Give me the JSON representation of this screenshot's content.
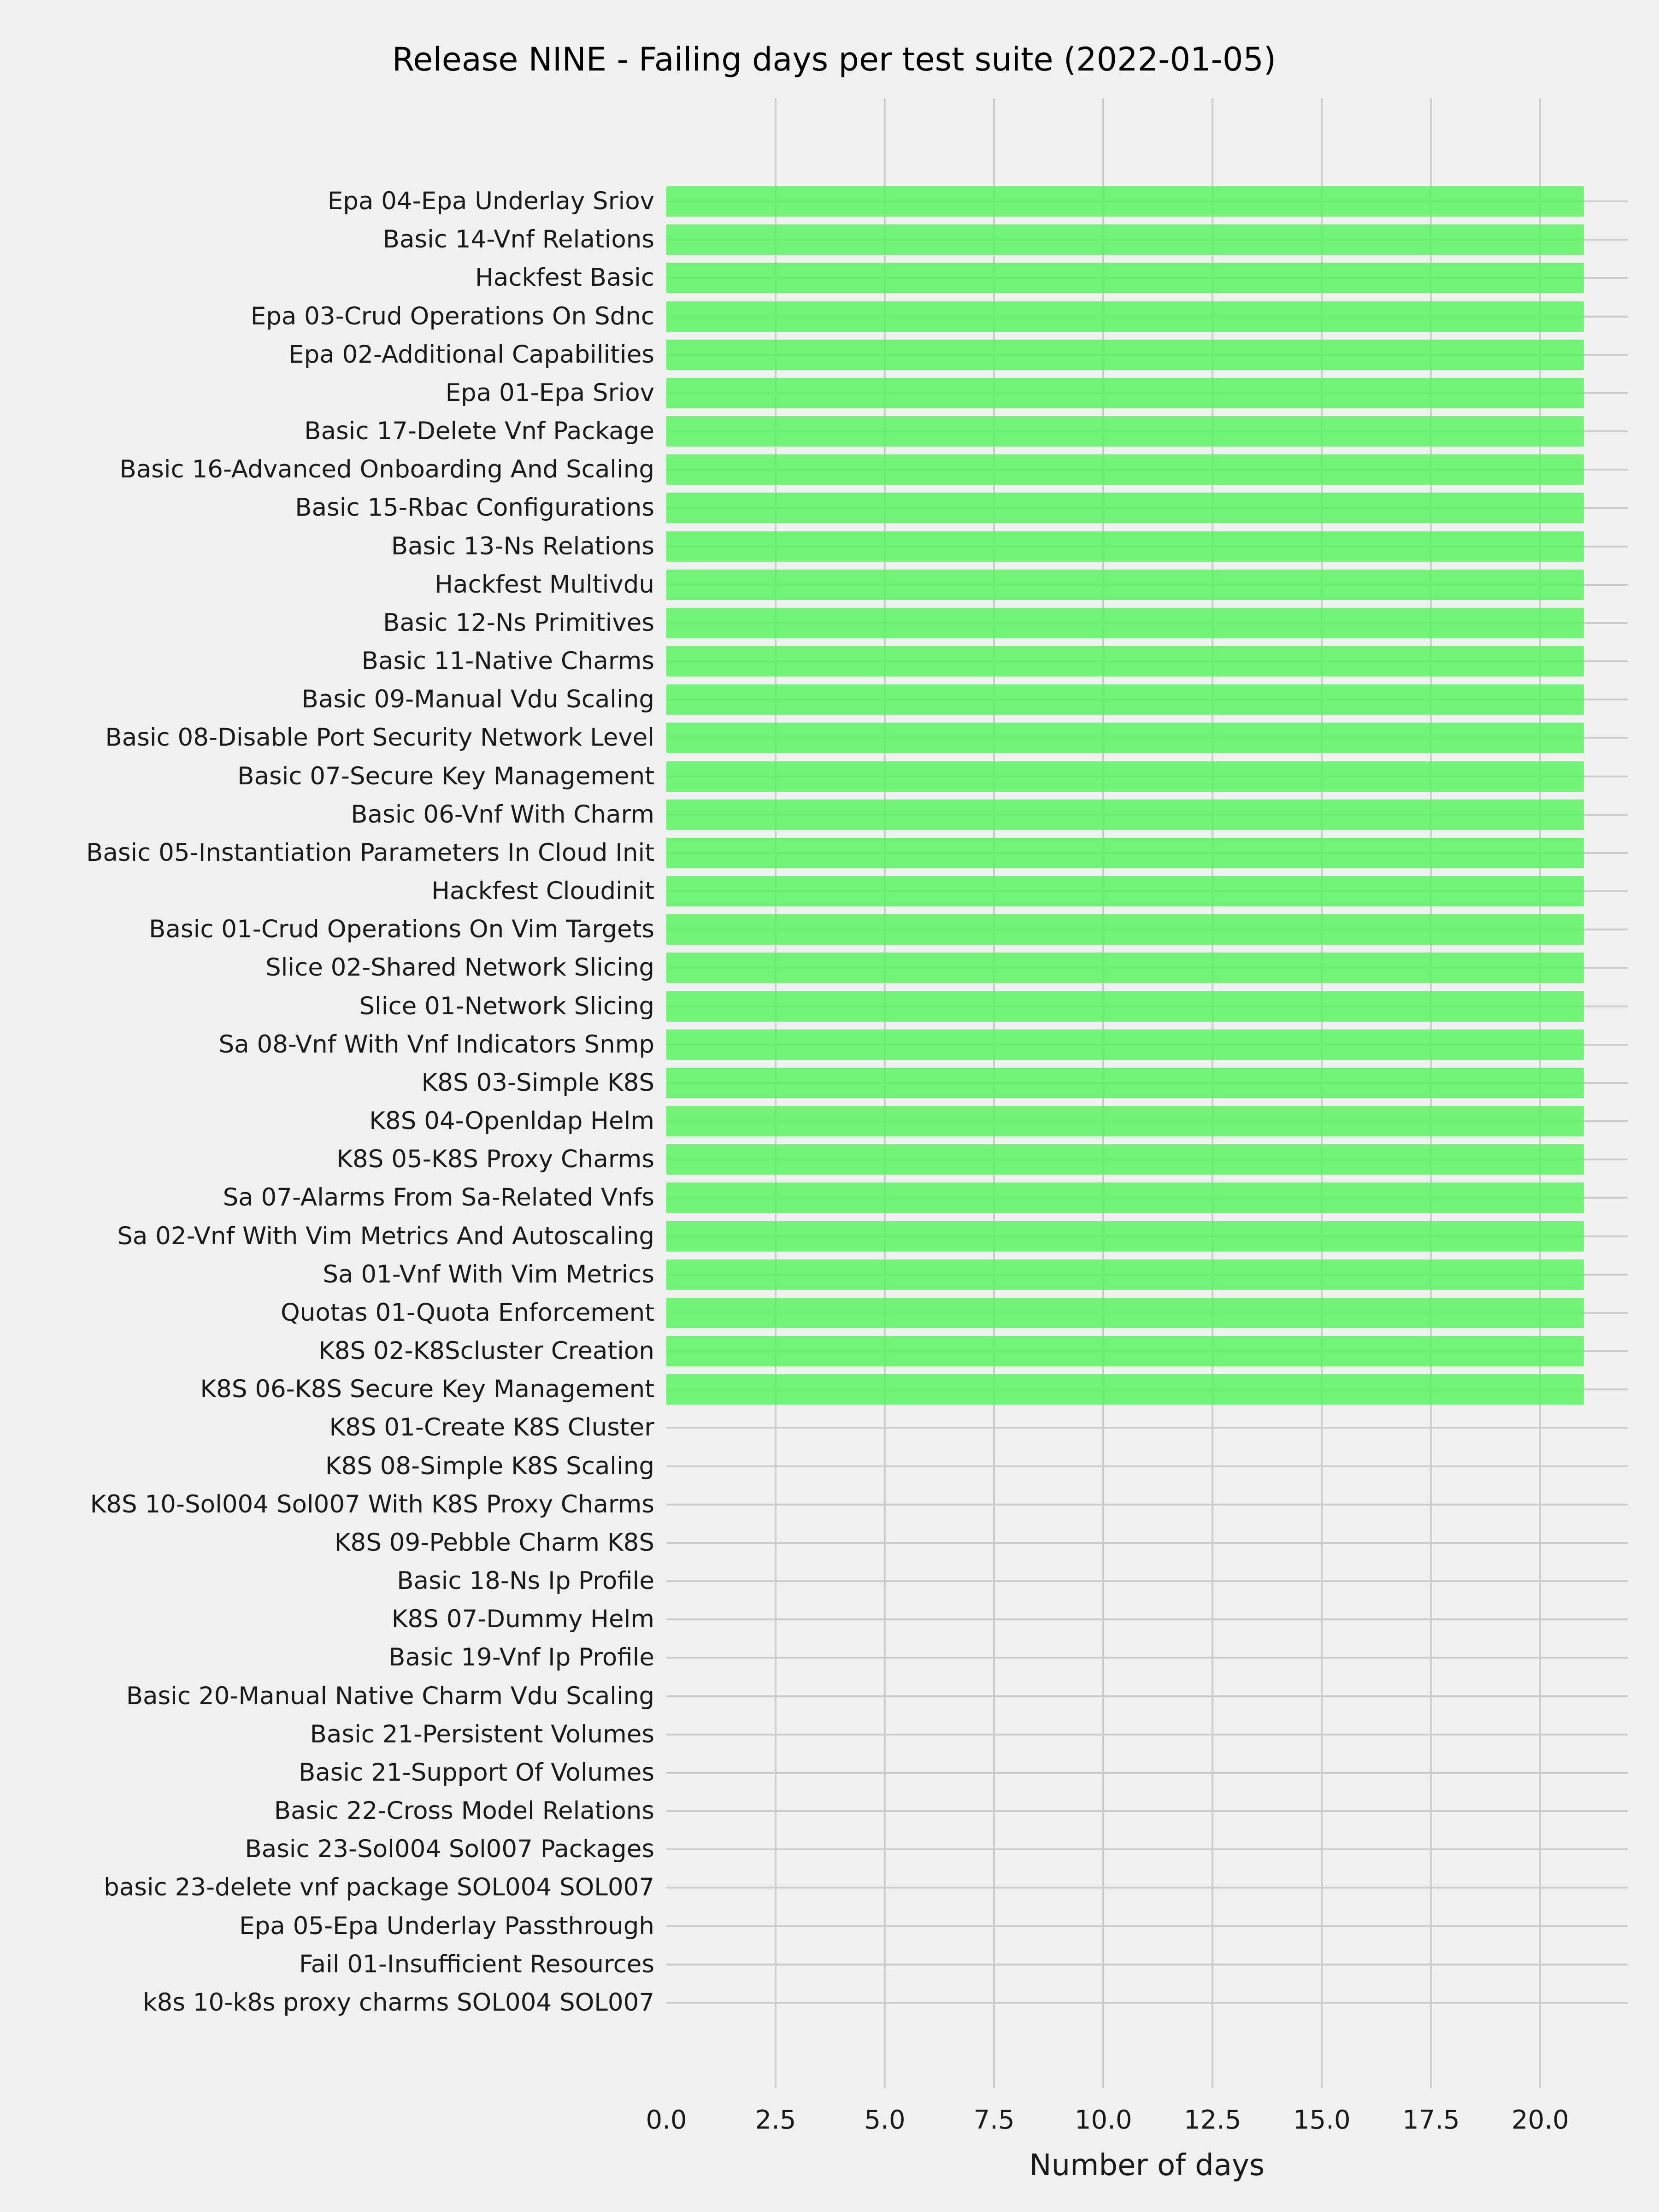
{
  "chart_data": {
    "type": "bar",
    "orientation": "horizontal",
    "title": "Release NINE - Failing days per test suite (2022-01-05)",
    "xlabel": "Number of days",
    "ylabel": "",
    "xlim": [
      0,
      22
    ],
    "x_ticks": [
      "0.0",
      "2.5",
      "5.0",
      "7.5",
      "10.0",
      "12.5",
      "15.0",
      "17.5",
      "20.0"
    ],
    "grid": true,
    "legend": false,
    "background_color": "#f0f0f0",
    "grid_color": "#cbcbcb",
    "bar_color": "#73f377",
    "categories": [
      "Epa 04-Epa Underlay Sriov",
      "Basic 14-Vnf Relations",
      "Hackfest Basic",
      "Epa 03-Crud Operations On Sdnc",
      "Epa 02-Additional Capabilities",
      "Epa 01-Epa Sriov",
      "Basic 17-Delete Vnf Package",
      "Basic 16-Advanced Onboarding And Scaling",
      "Basic 15-Rbac Configurations",
      "Basic 13-Ns Relations",
      "Hackfest Multivdu",
      "Basic 12-Ns Primitives",
      "Basic 11-Native Charms",
      "Basic 09-Manual Vdu Scaling",
      "Basic 08-Disable Port Security Network Level",
      "Basic 07-Secure Key Management",
      "Basic 06-Vnf With Charm",
      "Basic 05-Instantiation Parameters In Cloud Init",
      "Hackfest Cloudinit",
      "Basic 01-Crud Operations On Vim Targets",
      "Slice 02-Shared Network Slicing",
      "Slice 01-Network Slicing",
      "Sa 08-Vnf With Vnf Indicators Snmp",
      "K8S 03-Simple K8S",
      "K8S 04-Openldap Helm",
      "K8S 05-K8S Proxy Charms",
      "Sa 07-Alarms From Sa-Related Vnfs",
      "Sa 02-Vnf With Vim Metrics And Autoscaling",
      "Sa 01-Vnf With Vim Metrics",
      "Quotas 01-Quota Enforcement",
      "K8S 02-K8Scluster Creation",
      "K8S 06-K8S Secure Key Management",
      "K8S 01-Create K8S Cluster",
      "K8S 08-Simple K8S Scaling",
      "K8S 10-Sol004 Sol007 With K8S Proxy Charms",
      "K8S 09-Pebble Charm K8S",
      "Basic 18-Ns Ip Profile",
      "K8S 07-Dummy Helm",
      "Basic 19-Vnf Ip Profile",
      "Basic 20-Manual Native Charm Vdu Scaling",
      "Basic 21-Persistent Volumes",
      "Basic 21-Support Of Volumes",
      "Basic 22-Cross Model Relations",
      "Basic 23-Sol004 Sol007 Packages",
      "basic 23-delete vnf package SOL004 SOL007",
      "Epa 05-Epa Underlay Passthrough",
      "Fail 01-Insufficient Resources",
      "k8s 10-k8s proxy charms SOL004 SOL007"
    ],
    "values": [
      21,
      21,
      21,
      21,
      21,
      21,
      21,
      21,
      21,
      21,
      21,
      21,
      21,
      21,
      21,
      21,
      21,
      21,
      21,
      21,
      21,
      21,
      21,
      21,
      21,
      21,
      21,
      21,
      21,
      21,
      21,
      21,
      0,
      0,
      0,
      0,
      0,
      0,
      0,
      0,
      0,
      0,
      0,
      0,
      0,
      0,
      0,
      0
    ]
  }
}
